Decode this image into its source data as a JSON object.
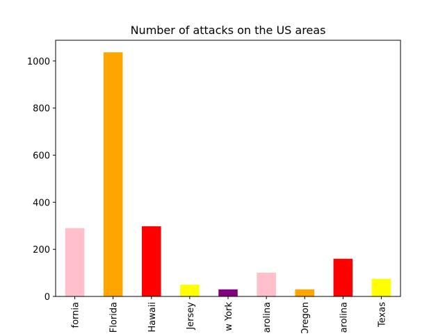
{
  "chart_data": {
    "type": "bar",
    "title": "Number of attacks on the US areas",
    "xlabel": "",
    "ylabel": "",
    "categories": [
      "fornia",
      "Florida",
      "Hawaii",
      "Jersey",
      "w York",
      "arolina",
      "Oregon",
      "arolina",
      "Texas"
    ],
    "values": [
      290,
      1037,
      298,
      50,
      30,
      101,
      30,
      160,
      75
    ],
    "colors": [
      "#ffc0cb",
      "#ffa500",
      "#ff0000",
      "#ffff00",
      "#800080",
      "#ffc0cb",
      "#ffa500",
      "#ff0000",
      "#ffff00"
    ],
    "ylim": [
      0,
      1088
    ],
    "yticks": [
      0,
      200,
      400,
      600,
      800,
      1000
    ],
    "grid": false,
    "legend": "none"
  }
}
